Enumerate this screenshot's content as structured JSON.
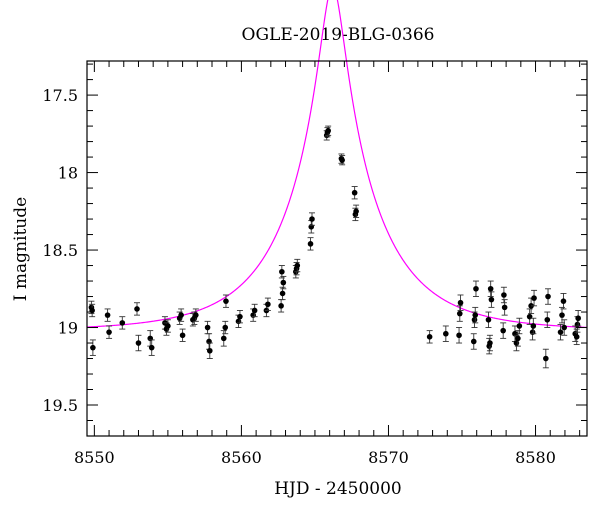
{
  "chart_data": {
    "type": "scatter",
    "title": "OGLE-2019-BLG-0366",
    "xlabel": "HJD - 2450000",
    "ylabel": "I magnitude",
    "xlim": [
      8549.5,
      8583.5
    ],
    "ylim": [
      19.7,
      17.28
    ],
    "y_inverted": true,
    "xticks": [
      8550,
      8560,
      8570,
      8580
    ],
    "yticks": [
      17.5,
      18,
      18.5,
      19,
      19.5
    ],
    "xtick_labels": [
      "8550",
      "8560",
      "8570",
      "8580"
    ],
    "ytick_labels": [
      "17.5",
      "18",
      "18.5",
      "19",
      "19.5"
    ],
    "grid": false,
    "colors": {
      "data": "#000000",
      "model": "#ff00ff"
    },
    "series": [
      {
        "kind": "points_with_errorbars",
        "points": [
          {
            "x": 8549.8,
            "y": 18.87,
            "err": 0.04
          },
          {
            "x": 8549.85,
            "y": 18.89,
            "err": 0.04
          },
          {
            "x": 8549.9,
            "y": 19.13,
            "err": 0.05
          },
          {
            "x": 8550.9,
            "y": 18.92,
            "err": 0.04
          },
          {
            "x": 8551.0,
            "y": 19.03,
            "err": 0.04
          },
          {
            "x": 8551.9,
            "y": 18.97,
            "err": 0.04
          },
          {
            "x": 8552.9,
            "y": 18.88,
            "err": 0.04
          },
          {
            "x": 8553.0,
            "y": 19.1,
            "err": 0.05
          },
          {
            "x": 8553.8,
            "y": 19.07,
            "err": 0.05
          },
          {
            "x": 8553.9,
            "y": 19.13,
            "err": 0.05
          },
          {
            "x": 8554.8,
            "y": 18.97,
            "err": 0.04
          },
          {
            "x": 8554.9,
            "y": 19.01,
            "err": 0.04
          },
          {
            "x": 8555.0,
            "y": 18.99,
            "err": 0.04
          },
          {
            "x": 8555.8,
            "y": 18.94,
            "err": 0.04
          },
          {
            "x": 8555.9,
            "y": 18.92,
            "err": 0.04
          },
          {
            "x": 8556.0,
            "y": 19.05,
            "err": 0.04
          },
          {
            "x": 8556.7,
            "y": 18.95,
            "err": 0.04
          },
          {
            "x": 8556.8,
            "y": 18.94,
            "err": 0.04
          },
          {
            "x": 8556.9,
            "y": 18.92,
            "err": 0.04
          },
          {
            "x": 8557.7,
            "y": 19.0,
            "err": 0.04
          },
          {
            "x": 8557.8,
            "y": 19.09,
            "err": 0.05
          },
          {
            "x": 8557.85,
            "y": 19.15,
            "err": 0.05
          },
          {
            "x": 8558.8,
            "y": 19.07,
            "err": 0.05
          },
          {
            "x": 8558.9,
            "y": 19.0,
            "err": 0.04
          },
          {
            "x": 8558.95,
            "y": 18.83,
            "err": 0.04
          },
          {
            "x": 8559.8,
            "y": 18.96,
            "err": 0.04
          },
          {
            "x": 8559.9,
            "y": 18.93,
            "err": 0.04
          },
          {
            "x": 8560.8,
            "y": 18.92,
            "err": 0.04
          },
          {
            "x": 8560.9,
            "y": 18.89,
            "err": 0.04
          },
          {
            "x": 8561.7,
            "y": 18.89,
            "err": 0.04
          },
          {
            "x": 8561.8,
            "y": 18.85,
            "err": 0.04
          },
          {
            "x": 8562.7,
            "y": 18.86,
            "err": 0.04
          },
          {
            "x": 8562.75,
            "y": 18.64,
            "err": 0.04
          },
          {
            "x": 8562.8,
            "y": 18.78,
            "err": 0.04
          },
          {
            "x": 8562.85,
            "y": 18.71,
            "err": 0.04
          },
          {
            "x": 8563.7,
            "y": 18.64,
            "err": 0.04
          },
          {
            "x": 8563.75,
            "y": 18.62,
            "err": 0.04
          },
          {
            "x": 8563.8,
            "y": 18.6,
            "err": 0.04
          },
          {
            "x": 8564.7,
            "y": 18.46,
            "err": 0.04
          },
          {
            "x": 8564.75,
            "y": 18.35,
            "err": 0.04
          },
          {
            "x": 8564.8,
            "y": 18.3,
            "err": 0.04
          },
          {
            "x": 8565.8,
            "y": 17.76,
            "err": 0.03
          },
          {
            "x": 8565.85,
            "y": 17.74,
            "err": 0.03
          },
          {
            "x": 8565.9,
            "y": 17.73,
            "err": 0.03
          },
          {
            "x": 8566.8,
            "y": 17.91,
            "err": 0.03
          },
          {
            "x": 8566.85,
            "y": 17.92,
            "err": 0.03
          },
          {
            "x": 8567.7,
            "y": 18.13,
            "err": 0.04
          },
          {
            "x": 8567.75,
            "y": 18.27,
            "err": 0.04
          },
          {
            "x": 8567.8,
            "y": 18.25,
            "err": 0.04
          },
          {
            "x": 8572.8,
            "y": 19.06,
            "err": 0.04
          },
          {
            "x": 8573.9,
            "y": 19.04,
            "err": 0.05
          },
          {
            "x": 8574.8,
            "y": 19.05,
            "err": 0.05
          },
          {
            "x": 8574.85,
            "y": 18.91,
            "err": 0.05
          },
          {
            "x": 8574.9,
            "y": 18.84,
            "err": 0.05
          },
          {
            "x": 8575.8,
            "y": 19.09,
            "err": 0.05
          },
          {
            "x": 8575.85,
            "y": 18.95,
            "err": 0.05
          },
          {
            "x": 8575.9,
            "y": 18.92,
            "err": 0.05
          },
          {
            "x": 8575.95,
            "y": 18.75,
            "err": 0.05
          },
          {
            "x": 8576.8,
            "y": 18.95,
            "err": 0.05
          },
          {
            "x": 8576.85,
            "y": 19.12,
            "err": 0.05
          },
          {
            "x": 8576.9,
            "y": 19.1,
            "err": 0.05
          },
          {
            "x": 8576.95,
            "y": 18.75,
            "err": 0.05
          },
          {
            "x": 8577.0,
            "y": 18.82,
            "err": 0.05
          },
          {
            "x": 8577.8,
            "y": 19.02,
            "err": 0.05
          },
          {
            "x": 8577.85,
            "y": 18.79,
            "err": 0.05
          },
          {
            "x": 8577.9,
            "y": 18.87,
            "err": 0.05
          },
          {
            "x": 8578.6,
            "y": 19.04,
            "err": 0.05
          },
          {
            "x": 8578.7,
            "y": 19.1,
            "err": 0.05
          },
          {
            "x": 8578.8,
            "y": 19.07,
            "err": 0.05
          },
          {
            "x": 8578.9,
            "y": 18.99,
            "err": 0.05
          },
          {
            "x": 8579.6,
            "y": 18.93,
            "err": 0.05
          },
          {
            "x": 8579.7,
            "y": 18.86,
            "err": 0.05
          },
          {
            "x": 8579.8,
            "y": 19.03,
            "err": 0.05
          },
          {
            "x": 8579.85,
            "y": 18.99,
            "err": 0.05
          },
          {
            "x": 8579.9,
            "y": 18.81,
            "err": 0.05
          },
          {
            "x": 8580.7,
            "y": 19.2,
            "err": 0.06
          },
          {
            "x": 8580.8,
            "y": 18.95,
            "err": 0.05
          },
          {
            "x": 8580.85,
            "y": 18.8,
            "err": 0.05
          },
          {
            "x": 8581.7,
            "y": 19.03,
            "err": 0.05
          },
          {
            "x": 8581.8,
            "y": 18.92,
            "err": 0.05
          },
          {
            "x": 8581.9,
            "y": 18.83,
            "err": 0.05
          },
          {
            "x": 8581.95,
            "y": 19.0,
            "err": 0.05
          },
          {
            "x": 8582.7,
            "y": 19.04,
            "err": 0.05
          },
          {
            "x": 8582.8,
            "y": 19.06,
            "err": 0.05
          },
          {
            "x": 8582.85,
            "y": 18.98,
            "err": 0.05
          },
          {
            "x": 8582.9,
            "y": 18.94,
            "err": 0.05
          }
        ]
      },
      {
        "kind": "model_curve",
        "model": "pspl",
        "t0": 8566.2,
        "u0": 0.13,
        "tE": 6.0,
        "baseline_mag": 19.02
      }
    ]
  }
}
